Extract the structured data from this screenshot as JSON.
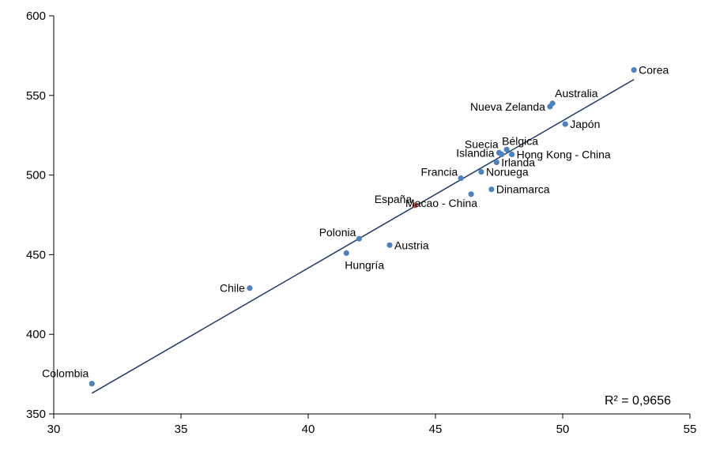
{
  "chart_data": {
    "type": "scatter",
    "title": "",
    "xlabel": "",
    "ylabel": "",
    "xlim": [
      30,
      55
    ],
    "ylim": [
      350,
      600
    ],
    "x_ticks": [
      30,
      35,
      40,
      45,
      50,
      55
    ],
    "y_ticks": [
      350,
      400,
      450,
      500,
      550,
      600
    ],
    "grid": false,
    "colors": {
      "default": "#4f81bd",
      "highlight": "#c0504d",
      "trendline": "#1f3864"
    },
    "points": [
      {
        "label": "Colombia",
        "x": 31.5,
        "y": 369,
        "anchor": "above-left"
      },
      {
        "label": "Chile",
        "x": 37.7,
        "y": 429,
        "anchor": "left"
      },
      {
        "label": "Hungría",
        "x": 41.5,
        "y": 451,
        "anchor": "below"
      },
      {
        "label": "Polonia",
        "x": 42.0,
        "y": 460,
        "anchor": "left-above"
      },
      {
        "label": "Austria",
        "x": 43.2,
        "y": 456,
        "anchor": "right"
      },
      {
        "label": "España",
        "x": 44.2,
        "y": 481,
        "anchor": "left-above",
        "highlight": true
      },
      {
        "label": "Macao - China",
        "x": 46.4,
        "y": 488,
        "anchor": "below-left"
      },
      {
        "label": "Francia",
        "x": 46.0,
        "y": 498,
        "anchor": "left-above"
      },
      {
        "label": "Dinamarca",
        "x": 47.2,
        "y": 491,
        "anchor": "right"
      },
      {
        "label": "Noruega",
        "x": 46.8,
        "y": 502,
        "anchor": "right"
      },
      {
        "label": "Irlanda",
        "x": 47.4,
        "y": 508,
        "anchor": "right"
      },
      {
        "label": "Islandia",
        "x": 47.5,
        "y": 514,
        "anchor": "left"
      },
      {
        "label": "Suecia",
        "x": 47.6,
        "y": 513,
        "anchor": "above-left"
      },
      {
        "label": "Bélgica",
        "x": 47.8,
        "y": 516,
        "anchor": "above"
      },
      {
        "label": "Hong Kong - China",
        "x": 48.0,
        "y": 513,
        "anchor": "right"
      },
      {
        "label": "Japón",
        "x": 50.1,
        "y": 532,
        "anchor": "right"
      },
      {
        "label": "Nueva Zelanda",
        "x": 49.5,
        "y": 543,
        "anchor": "left"
      },
      {
        "label": "Australia",
        "x": 49.6,
        "y": 545,
        "anchor": "above-right"
      },
      {
        "label": "Corea",
        "x": 52.8,
        "y": 566,
        "anchor": "right"
      }
    ],
    "trendline": {
      "x": [
        31.5,
        52.8
      ],
      "y": [
        363,
        560
      ]
    },
    "annotation": "R² = 0,9656"
  }
}
